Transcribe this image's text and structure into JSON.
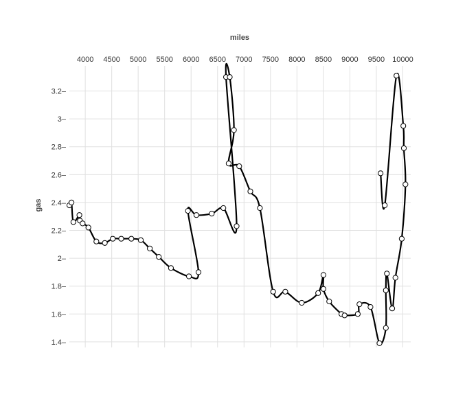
{
  "chart_data": {
    "type": "line",
    "title": "",
    "xlabel": "miles",
    "ylabel": "gas",
    "x_axis_position": "top",
    "xlim": [
      3700,
      10150
    ],
    "ylim": [
      1.36,
      3.38
    ],
    "x_ticks": [
      4000,
      4500,
      5000,
      5500,
      6000,
      6500,
      7000,
      7500,
      8000,
      8500,
      9000,
      9500,
      10000
    ],
    "y_ticks": [
      1.4,
      1.6,
      1.8,
      2,
      2.2,
      2.4,
      2.6,
      2.8,
      3,
      3.2
    ],
    "y_tick_labels": [
      "1.4",
      "1.6",
      "1.8",
      "2",
      "2.2",
      "2.4",
      "2.6",
      "2.8",
      "3",
      "3.2"
    ],
    "grid": true,
    "legend": "none",
    "series": [
      {
        "color": "#000000",
        "curve": "smooth",
        "points": [
          [
            3700,
            2.38
          ],
          [
            3740,
            2.4
          ],
          [
            3775,
            2.26
          ],
          [
            3890,
            2.31
          ],
          [
            3900,
            2.27
          ],
          [
            3950,
            2.25
          ],
          [
            4060,
            2.22
          ],
          [
            4210,
            2.12
          ],
          [
            4370,
            2.11
          ],
          [
            4520,
            2.14
          ],
          [
            4680,
            2.14
          ],
          [
            4870,
            2.14
          ],
          [
            5050,
            2.13
          ],
          [
            5220,
            2.07
          ],
          [
            5390,
            2.01
          ],
          [
            5620,
            1.93
          ],
          [
            5960,
            1.87
          ],
          [
            6140,
            1.9
          ],
          [
            5940,
            2.34
          ],
          [
            6100,
            2.31
          ],
          [
            6390,
            2.32
          ],
          [
            6610,
            2.36
          ],
          [
            6860,
            2.23
          ],
          [
            6660,
            3.3
          ],
          [
            6730,
            3.3
          ],
          [
            6810,
            2.92
          ],
          [
            6710,
            2.68
          ],
          [
            6910,
            2.66
          ],
          [
            7120,
            2.48
          ],
          [
            7300,
            2.36
          ],
          [
            7550,
            1.76
          ],
          [
            7780,
            1.76
          ],
          [
            8090,
            1.68
          ],
          [
            8400,
            1.75
          ],
          [
            8500,
            1.88
          ],
          [
            8500,
            1.78
          ],
          [
            8610,
            1.69
          ],
          [
            8840,
            1.6
          ],
          [
            8900,
            1.59
          ],
          [
            9150,
            1.6
          ],
          [
            9180,
            1.67
          ],
          [
            9390,
            1.65
          ],
          [
            9560,
            1.39
          ],
          [
            9680,
            1.5
          ],
          [
            9680,
            1.77
          ],
          [
            9700,
            1.89
          ],
          [
            9800,
            1.64
          ],
          [
            9860,
            1.86
          ],
          [
            9980,
            2.14
          ],
          [
            10050,
            2.53
          ],
          [
            10020,
            2.79
          ],
          [
            10010,
            2.95
          ],
          [
            9880,
            3.31
          ],
          [
            9660,
            2.38
          ],
          [
            9580,
            2.61
          ]
        ]
      }
    ]
  }
}
